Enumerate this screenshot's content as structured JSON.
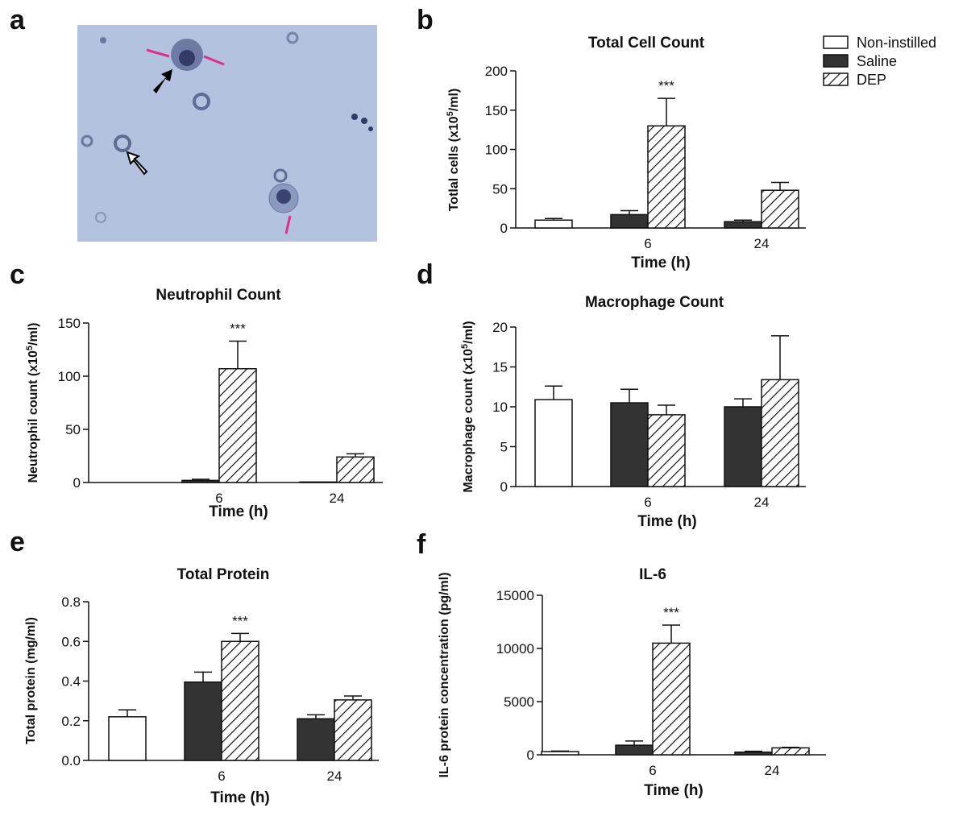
{
  "panel_a": {
    "label": "a"
  },
  "legend": {
    "names": [
      "Non-instilled",
      "Saline",
      "DEP"
    ],
    "colors": [
      "#ffffff",
      "#333333",
      "hatch"
    ]
  },
  "chart_data": [
    {
      "type": "bar",
      "panel": "b",
      "title": "Total Cell Count",
      "xlabel": "Time (h)",
      "ylabel": [
        "Totlal cells (x10",
        "5",
        "/ml)"
      ],
      "categories": [
        null,
        "6",
        "24"
      ],
      "series": [
        {
          "values": [
            10,
            null,
            null
          ],
          "errors": [
            2,
            null,
            null
          ]
        },
        {
          "values": [
            null,
            17,
            8
          ],
          "errors": [
            null,
            5,
            2
          ]
        },
        {
          "values": [
            null,
            130,
            48
          ],
          "errors": [
            null,
            35,
            10
          ]
        }
      ],
      "annotation": "***",
      "ylim": [
        0,
        200
      ],
      "yticks": [
        0,
        50,
        100,
        150,
        200
      ]
    },
    {
      "type": "bar",
      "panel": "c",
      "title": "Neutrophil Count",
      "xlabel": "Time (h)",
      "ylabel": [
        "Neutrophil count (x10",
        "5",
        "/ml)"
      ],
      "categories": [
        null,
        "6",
        "24"
      ],
      "series": [
        {
          "values": [
            0,
            null,
            null
          ],
          "errors": [
            null,
            null,
            null
          ]
        },
        {
          "values": [
            null,
            2,
            0.5
          ],
          "errors": [
            null,
            1,
            null
          ]
        },
        {
          "values": [
            null,
            107,
            24
          ],
          "errors": [
            null,
            26,
            3
          ]
        }
      ],
      "annotation": "***",
      "ylim": [
        0,
        150
      ],
      "yticks": [
        0,
        50,
        100,
        150
      ]
    },
    {
      "type": "bar",
      "panel": "d",
      "title": "Macrophage Count",
      "xlabel": "Time (h)",
      "ylabel": [
        "Macrophage count (x10",
        "5",
        "/ml)"
      ],
      "categories": [
        null,
        "6",
        "24"
      ],
      "series": [
        {
          "values": [
            10.9,
            null,
            null
          ],
          "errors": [
            1.7,
            null,
            null
          ]
        },
        {
          "values": [
            null,
            10.5,
            10.0
          ],
          "errors": [
            null,
            1.7,
            1.0
          ]
        },
        {
          "values": [
            null,
            9.0,
            13.4
          ],
          "errors": [
            null,
            1.2,
            5.5
          ]
        }
      ],
      "ylim": [
        0,
        20
      ],
      "yticks": [
        0,
        5,
        10,
        15,
        20
      ]
    },
    {
      "type": "bar",
      "panel": "e",
      "title": "Total Protein",
      "xlabel": "Time (h)",
      "ylabel": [
        "Total protein (mg/ml)"
      ],
      "categories": [
        null,
        "6",
        "24"
      ],
      "series": [
        {
          "values": [
            0.22,
            null,
            null
          ],
          "errors": [
            0.035,
            null,
            null
          ]
        },
        {
          "values": [
            null,
            0.395,
            0.21
          ],
          "errors": [
            null,
            0.05,
            0.02
          ]
        },
        {
          "values": [
            null,
            0.6,
            0.305
          ],
          "errors": [
            null,
            0.04,
            0.02
          ]
        }
      ],
      "annotation": "***",
      "ylim": [
        0,
        0.8
      ],
      "yticks": [
        {
          "value": 0,
          "label": "0.0"
        },
        0.2,
        0.4,
        0.6,
        0.8
      ]
    },
    {
      "type": "bar",
      "panel": "f",
      "title": "IL-6",
      "xlabel": "Time (h)",
      "ylabel": [
        "IL-6 protein concentration (pg/ml)"
      ],
      "categories": [
        null,
        "6",
        "24"
      ],
      "series": [
        {
          "values": [
            300,
            null,
            null
          ],
          "errors": [
            50,
            null,
            null
          ]
        },
        {
          "values": [
            null,
            900,
            250
          ],
          "errors": [
            null,
            400,
            80
          ]
        },
        {
          "values": [
            null,
            10500,
            650
          ],
          "errors": [
            null,
            1700,
            50
          ]
        }
      ],
      "annotation": "***",
      "ylim": [
        0,
        15000
      ],
      "yticks": [
        0,
        5000,
        10000,
        15000
      ]
    }
  ]
}
